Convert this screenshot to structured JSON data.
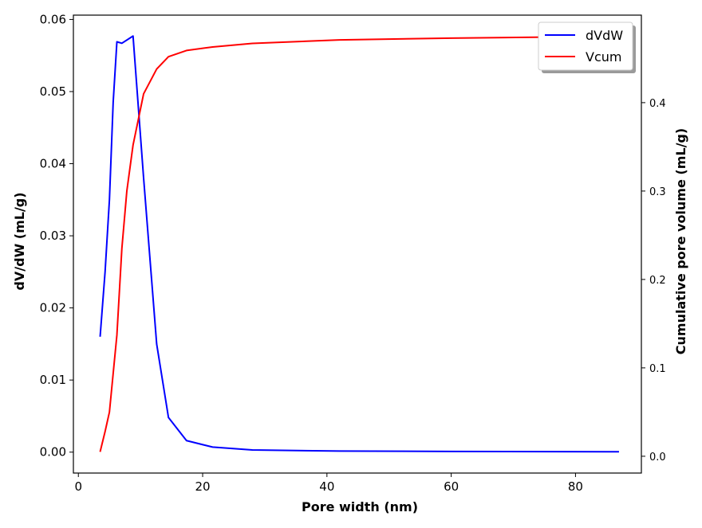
{
  "chart_data": {
    "type": "line",
    "title": "",
    "xlabel": "Pore width (nm)",
    "ylabel": "dV/dW (mL/g)",
    "y2label": "Cumulative pore volume (mL/g)",
    "xlim": [
      -0.8,
      90.6
    ],
    "ylim": [
      -0.0029,
      0.0606
    ],
    "y2lim": [
      -0.019,
      0.499
    ],
    "x_ticks": [
      0,
      20,
      40,
      60,
      80
    ],
    "x_tick_labels": [
      "0",
      "20",
      "40",
      "60",
      "80"
    ],
    "y_ticks": [
      0.0,
      0.01,
      0.02,
      0.03,
      0.04,
      0.05,
      0.06
    ],
    "y_tick_labels": [
      "0.00",
      "0.01",
      "0.02",
      "0.03",
      "0.04",
      "0.05",
      "0.06"
    ],
    "y2_ticks": [
      0.0,
      0.1,
      0.2,
      0.3,
      0.4
    ],
    "y2_tick_labels": [
      "0.0",
      "0.1",
      "0.2",
      "0.3",
      "0.4"
    ],
    "grid": false,
    "legend_position": "upper-right",
    "series": [
      {
        "name": "dVdW",
        "axis": "left",
        "color": "#0000ff",
        "x": [
          3.5,
          4.3,
          5.0,
          5.6,
          6.2,
          7.0,
          8.8,
          10.5,
          12.6,
          14.5,
          17.4,
          21.6,
          28.0,
          42.0,
          60.0,
          87.0
        ],
        "y": [
          0.016,
          0.025,
          0.035,
          0.0485,
          0.0569,
          0.0567,
          0.0577,
          0.038,
          0.015,
          0.0048,
          0.0016,
          0.0007,
          0.0003,
          0.00015,
          0.0001,
          5e-05
        ]
      },
      {
        "name": "Vcum",
        "axis": "right",
        "color": "#ff0000",
        "x": [
          3.5,
          4.3,
          5.0,
          6.2,
          7.0,
          7.8,
          8.8,
          10.5,
          12.6,
          14.5,
          17.4,
          21.6,
          28.0,
          42.0,
          60.0,
          87.0
        ],
        "y": [
          0.005,
          0.028,
          0.05,
          0.137,
          0.235,
          0.3,
          0.352,
          0.41,
          0.438,
          0.452,
          0.459,
          0.463,
          0.467,
          0.471,
          0.473,
          0.475
        ]
      }
    ]
  }
}
